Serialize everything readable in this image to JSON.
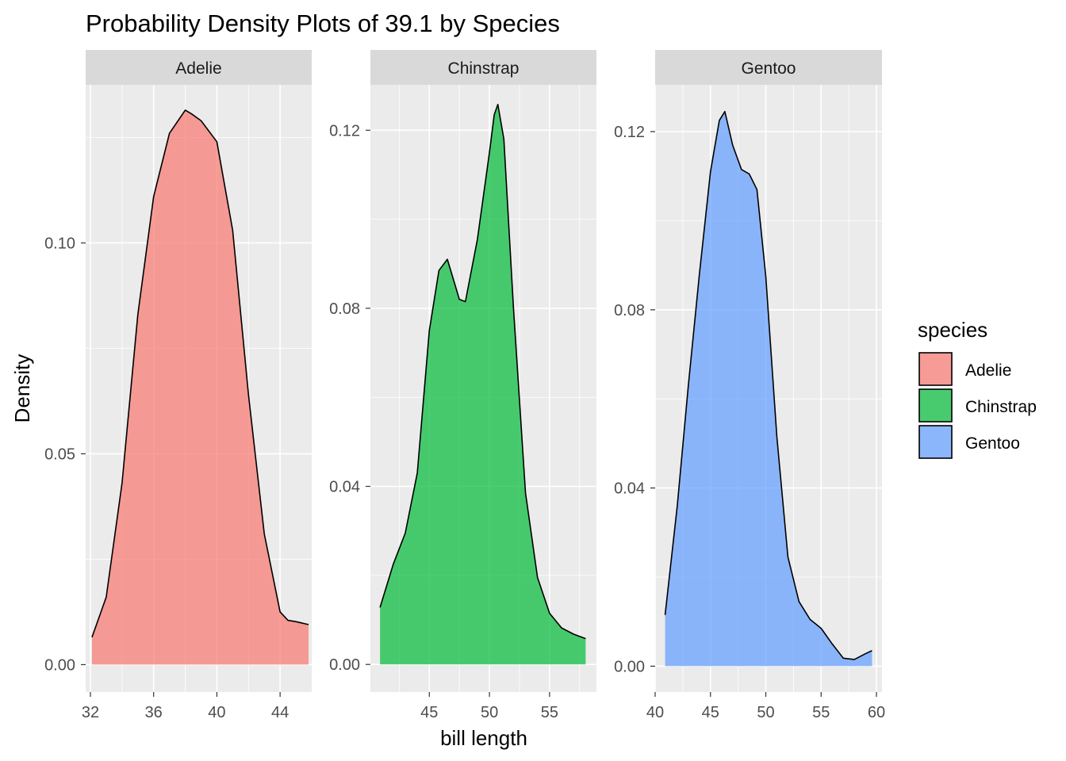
{
  "chart_data": {
    "type": "area",
    "title": "Probability Density Plots of 39.1 by Species",
    "xlabel": "bill length",
    "ylabel": "Density",
    "grid": true,
    "legend": {
      "title": "species",
      "placement": "right",
      "entries": [
        "Adelie",
        "Chinstrap",
        "Gentoo"
      ]
    },
    "facet_by": "species",
    "scales": "free",
    "panels": [
      {
        "name": "Adelie",
        "color": "#F8766D",
        "xlim": [
          31.7,
          46.0
        ],
        "ylim": [
          -0.0065,
          0.1375
        ],
        "xticks": [
          32,
          36,
          40,
          44
        ],
        "xtick_labels": [
          "32",
          "36",
          "40",
          "44"
        ],
        "yticks": [
          0.0,
          0.05,
          0.1
        ],
        "ytick_labels": [
          "0.00",
          "0.05",
          "0.10"
        ],
        "x": [
          32.1,
          33.0,
          34.0,
          35.0,
          36.0,
          37.0,
          38.0,
          38.4,
          39.0,
          40.0,
          41.0,
          42.0,
          43.0,
          44.0,
          44.5,
          45.0,
          45.8
        ],
        "y": [
          0.0065,
          0.016,
          0.043,
          0.083,
          0.111,
          0.126,
          0.1315,
          0.1306,
          0.129,
          0.124,
          0.103,
          0.064,
          0.031,
          0.0125,
          0.0105,
          0.0102,
          0.0095
        ]
      },
      {
        "name": "Chinstrap",
        "color": "#00BA38",
        "xlim": [
          40.1,
          58.9
        ],
        "ylim": [
          -0.0062,
          0.1302
        ],
        "xticks": [
          45,
          50,
          55
        ],
        "xtick_labels": [
          "45",
          "50",
          "55"
        ],
        "yticks": [
          0.0,
          0.04,
          0.08,
          0.12
        ],
        "ytick_labels": [
          "0.00",
          "0.04",
          "0.08",
          "0.12"
        ],
        "x": [
          40.9,
          42.0,
          43.0,
          44.0,
          45.0,
          45.8,
          46.5,
          47.0,
          47.5,
          48.0,
          49.0,
          50.0,
          50.4,
          50.7,
          51.2,
          52.0,
          53.0,
          54.0,
          55.0,
          56.0,
          57.0,
          58.0
        ],
        "y": [
          0.0128,
          0.0225,
          0.0295,
          0.043,
          0.075,
          0.0885,
          0.091,
          0.0865,
          0.082,
          0.0815,
          0.0955,
          0.115,
          0.1235,
          0.1258,
          0.118,
          0.08,
          0.0385,
          0.0195,
          0.0115,
          0.0082,
          0.0068,
          0.0058
        ]
      },
      {
        "name": "Gentoo",
        "color": "#619CFF",
        "xlim": [
          40.0,
          60.5
        ],
        "ylim": [
          -0.0058,
          0.1305
        ],
        "xticks": [
          40,
          45,
          50,
          55,
          60
        ],
        "xtick_labels": [
          "40",
          "45",
          "50",
          "55",
          "60"
        ],
        "yticks": [
          0.0,
          0.04,
          0.08,
          0.12
        ],
        "ytick_labels": [
          "0.00",
          "0.04",
          "0.08",
          "0.12"
        ],
        "x": [
          40.9,
          42.0,
          43.0,
          44.0,
          45.0,
          45.8,
          46.3,
          47.0,
          47.8,
          48.5,
          49.2,
          50.0,
          51.0,
          52.0,
          53.0,
          54.0,
          55.0,
          56.0,
          57.0,
          58.0,
          59.0,
          59.6
        ],
        "y": [
          0.0115,
          0.036,
          0.063,
          0.088,
          0.111,
          0.1225,
          0.1245,
          0.117,
          0.1115,
          0.1105,
          0.107,
          0.0875,
          0.0515,
          0.0245,
          0.0145,
          0.0105,
          0.0085,
          0.005,
          0.0018,
          0.0015,
          0.0028,
          0.0035
        ]
      }
    ]
  }
}
